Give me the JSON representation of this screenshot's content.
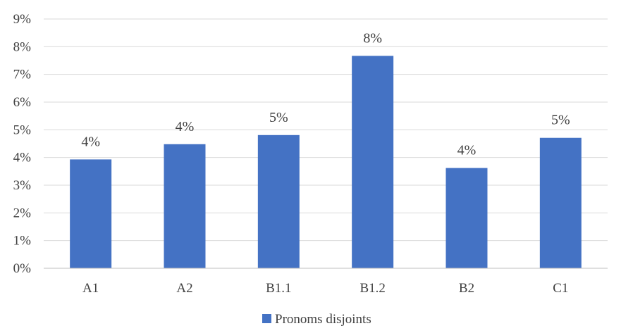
{
  "chart_data": {
    "type": "bar",
    "title": "",
    "xlabel": "",
    "ylabel": "",
    "categories": [
      "A1",
      "A2",
      "B1.1",
      "B1.2",
      "B2",
      "C1"
    ],
    "series": [
      {
        "name": "Pronoms disjoints",
        "values": [
          3.93,
          4.48,
          4.81,
          7.67,
          3.62,
          4.71
        ],
        "data_labels": [
          "4%",
          "4%",
          "5%",
          "8%",
          "4%",
          "5%"
        ],
        "color": "#4472c4"
      }
    ],
    "ylim": [
      0,
      9
    ],
    "y_ticks": [
      0,
      1,
      2,
      3,
      4,
      5,
      6,
      7,
      8,
      9
    ],
    "y_tick_labels": [
      "0%",
      "1%",
      "2%",
      "3%",
      "4%",
      "5%",
      "6%",
      "7%",
      "8%",
      "9%"
    ],
    "grid": true,
    "legend": {
      "position": "bottom",
      "entries": [
        "Pronoms disjoints"
      ]
    }
  }
}
